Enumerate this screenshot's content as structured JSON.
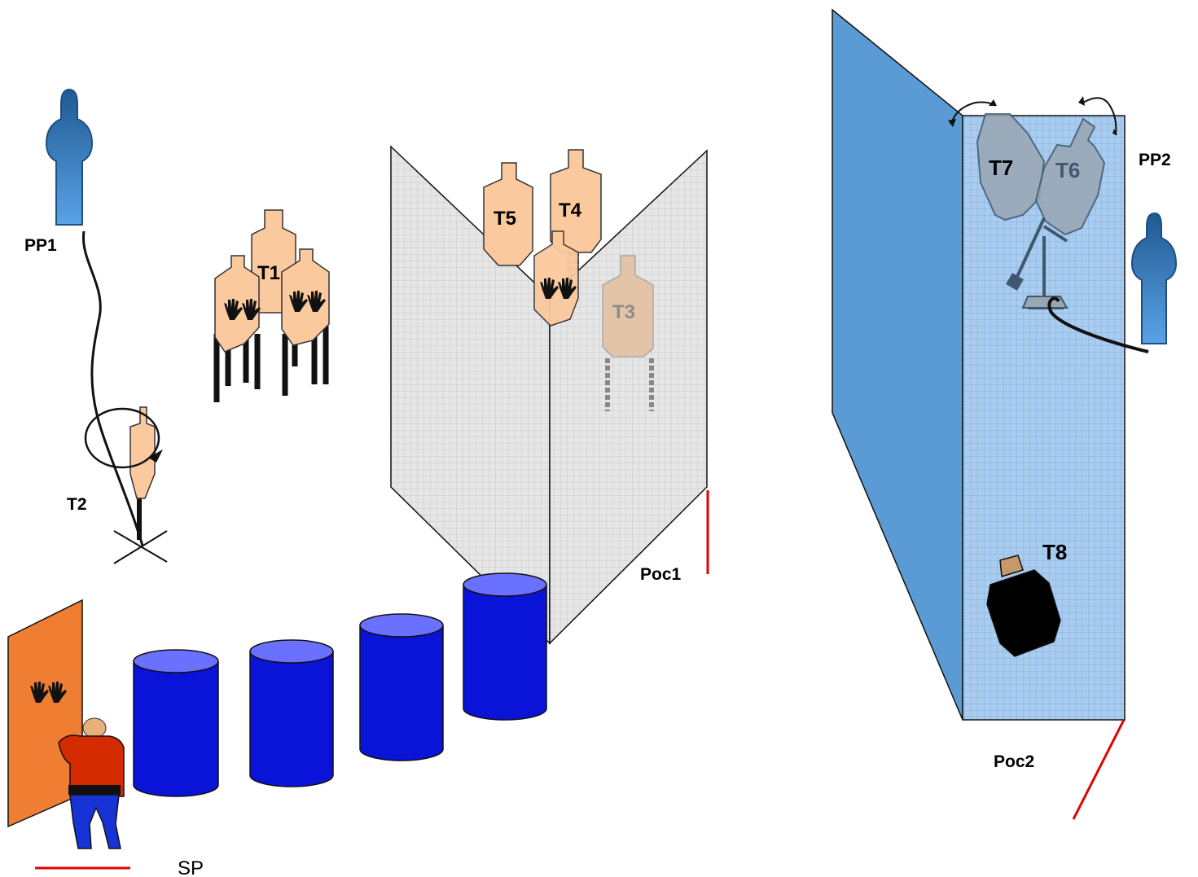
{
  "labels": {
    "pp1": "PP1",
    "pp2": "PP2",
    "t1": "T1",
    "t2": "T2",
    "t3": "T3",
    "t4": "T4",
    "t5": "T5",
    "t6": "T6",
    "t7": "T7",
    "t8": "T8",
    "poc1": "Poc1",
    "poc2": "Poc2",
    "sp": "SP"
  },
  "colors": {
    "target_fill": "#fbc99e",
    "target_stroke": "#333333",
    "popper_fill": "#3b78b5",
    "barrel_fill": "#0a14d8",
    "barrel_top": "#6a70ff",
    "mesh_fill": "#e4e4e4",
    "blue_wall": "#5b9bd5",
    "blue_mesh": "#a9ccef",
    "orange_wall": "#ef7d32",
    "fault_line": "#e30000",
    "shooter_shirt": "#d42a00",
    "shooter_pants": "#1733d6"
  },
  "icons": {
    "no_shoot_mark": "hands-icon",
    "swinger_motion": "rotation-arrow-icon",
    "shooter": "shooter-figure-icon"
  }
}
